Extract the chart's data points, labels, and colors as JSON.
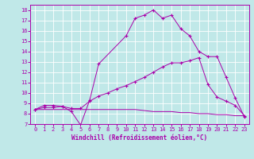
{
  "xlabel": "Windchill (Refroidissement éolien,°C)",
  "bg_color": "#c0e8e8",
  "line_color": "#aa00aa",
  "grid_color": "#ffffff",
  "xlim": [
    -0.5,
    23.5
  ],
  "ylim": [
    7,
    18.5
  ],
  "yticks": [
    7,
    8,
    9,
    10,
    11,
    12,
    13,
    14,
    15,
    16,
    17,
    18
  ],
  "xticks": [
    0,
    1,
    2,
    3,
    4,
    5,
    6,
    7,
    8,
    9,
    10,
    11,
    12,
    13,
    14,
    15,
    16,
    17,
    18,
    19,
    20,
    21,
    22,
    23
  ],
  "line1": {
    "x": [
      0,
      1,
      2,
      3,
      4,
      5,
      6,
      7,
      8,
      9,
      10,
      11,
      12,
      13,
      14,
      15,
      16,
      17,
      18,
      19,
      20,
      21,
      22,
      23
    ],
    "y": [
      8.4,
      8.4,
      8.4,
      8.4,
      8.4,
      8.4,
      8.4,
      8.4,
      8.4,
      8.4,
      8.4,
      8.4,
      8.3,
      8.2,
      8.2,
      8.2,
      8.1,
      8.1,
      8.0,
      8.0,
      7.9,
      7.9,
      7.8,
      7.8
    ]
  },
  "line2": {
    "x": [
      0,
      1,
      2,
      3,
      4,
      5,
      6,
      7,
      8,
      9,
      10,
      11,
      12,
      13,
      14,
      15,
      16,
      17,
      18,
      19,
      20,
      21,
      22,
      23
    ],
    "y": [
      8.4,
      8.6,
      8.6,
      8.7,
      8.5,
      8.5,
      9.2,
      9.7,
      10.0,
      10.4,
      10.7,
      11.1,
      11.5,
      12.0,
      12.5,
      12.9,
      12.9,
      13.1,
      13.4,
      10.8,
      9.6,
      9.2,
      8.8,
      7.8
    ]
  },
  "line3": {
    "x": [
      0,
      1,
      2,
      3,
      4,
      5,
      6,
      7,
      10,
      11,
      12,
      13,
      14,
      15,
      16,
      17,
      18,
      19,
      20,
      21,
      22,
      23
    ],
    "y": [
      8.4,
      8.8,
      8.8,
      8.7,
      8.2,
      6.9,
      9.3,
      12.8,
      15.5,
      17.2,
      17.5,
      18.0,
      17.2,
      17.5,
      16.2,
      15.5,
      14.0,
      13.5,
      13.5,
      11.5,
      9.5,
      7.7
    ]
  }
}
